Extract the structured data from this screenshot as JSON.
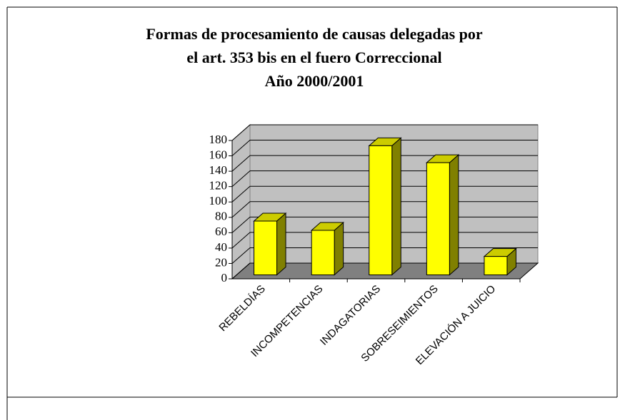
{
  "chart_data": {
    "type": "bar3d",
    "title": [
      "Formas de procesamiento de causas delegadas por",
      "el art. 353 bis en el fuero Correccional",
      "Año 2000/2001"
    ],
    "categories": [
      "REBELDÍAS",
      "INCOMPETENCIAS",
      "INDAGATORIAS",
      "SOBRESEIMIENTOS",
      "ELEVACIÓN A JUICIO"
    ],
    "values": [
      70,
      58,
      168,
      146,
      24
    ],
    "color": "#ffff00",
    "ylim": [
      0,
      180
    ],
    "yticks": [
      0,
      20,
      40,
      60,
      80,
      100,
      120,
      140,
      160,
      180
    ],
    "grid": true
  }
}
